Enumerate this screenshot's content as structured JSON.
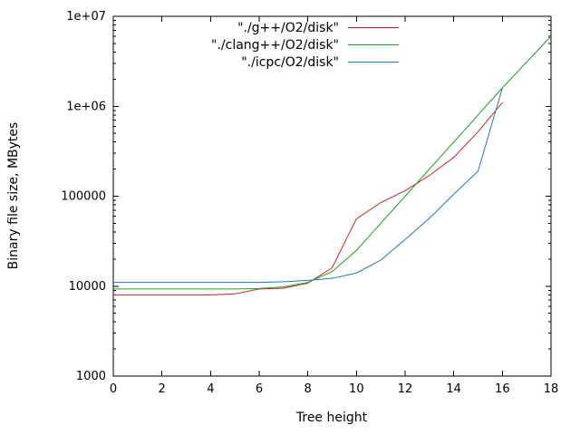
{
  "chart_data": {
    "type": "line",
    "title": "",
    "xlabel": "Tree height",
    "ylabel": "Binary file size, MBytes",
    "xlim": [
      0,
      18
    ],
    "ylim": [
      1000,
      10000000
    ],
    "y_scale": "log",
    "grid": false,
    "legend_position": "top-center",
    "x_ticks": [
      0,
      2,
      4,
      6,
      8,
      10,
      12,
      14,
      16,
      18
    ],
    "y_ticks": [
      {
        "value": 1000,
        "label": "1000"
      },
      {
        "value": 10000,
        "label": "10000"
      },
      {
        "value": 100000,
        "label": "100000"
      },
      {
        "value": 1000000,
        "label": "1e+06"
      },
      {
        "value": 10000000,
        "label": "1e+07"
      }
    ],
    "series": [
      {
        "name": "\"./g++/O2/disk\"",
        "color": "#cc2222",
        "x": [
          0,
          1,
          2,
          3,
          4,
          5,
          6,
          7,
          8,
          9,
          10,
          11,
          12,
          13,
          14,
          15,
          16
        ],
        "y": [
          8000,
          8000,
          8000,
          8000,
          8000,
          8200,
          9300,
          9500,
          10800,
          16000,
          56000,
          85000,
          115000,
          170000,
          270000,
          520000,
          1100000
        ]
      },
      {
        "name": "\"./clang++/O2/disk\"",
        "color": "#22a022",
        "x": [
          0,
          1,
          2,
          3,
          4,
          5,
          6,
          7,
          8,
          9,
          10,
          11,
          12,
          13,
          14,
          15,
          16,
          17,
          18
        ],
        "y": [
          9300,
          9300,
          9300,
          9300,
          9300,
          9300,
          9400,
          9800,
          11000,
          14500,
          25000,
          50000,
          100000,
          200000,
          400000,
          800000,
          1600000,
          3100000,
          6000000
        ]
      },
      {
        "name": "\"./icpc/O2/disk\"",
        "color": "#2277b4",
        "x": [
          0,
          1,
          2,
          3,
          4,
          5,
          6,
          7,
          8,
          9,
          10,
          11,
          12,
          13,
          14,
          15,
          16
        ],
        "y": [
          11000,
          11000,
          11000,
          11000,
          11000,
          11000,
          11000,
          11200,
          11600,
          12200,
          14000,
          19500,
          33000,
          57000,
          105000,
          190000,
          1600000
        ]
      }
    ]
  }
}
